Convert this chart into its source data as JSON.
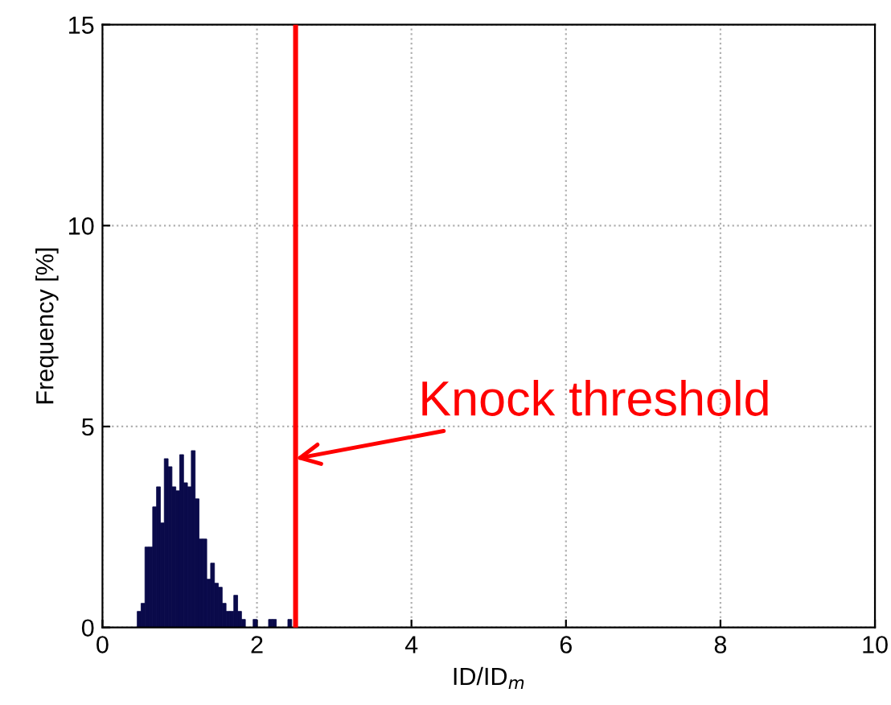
{
  "chart_data": {
    "type": "histogram",
    "xlabel": "ID/ID$_{m}$",
    "ylabel": "Frequency [%]",
    "bins": [
      0.45,
      0.5,
      0.55,
      0.6,
      0.65,
      0.7,
      0.75,
      0.8,
      0.85,
      0.9,
      0.95,
      1.0,
      1.05,
      1.1,
      1.15,
      1.2,
      1.25,
      1.3,
      1.35,
      1.4,
      1.45,
      1.5,
      1.55,
      1.6,
      1.65,
      1.7,
      1.75,
      1.8,
      1.85,
      1.9,
      1.95,
      2.0,
      2.05,
      2.1,
      2.15,
      2.2,
      2.25,
      2.3,
      2.35,
      2.4,
      2.45
    ],
    "values": [
      0.4,
      0.6,
      2.0,
      2.0,
      3.0,
      3.5,
      2.6,
      4.2,
      4.0,
      3.5,
      3.4,
      4.3,
      3.6,
      3.5,
      4.4,
      3.2,
      2.2,
      2.2,
      1.2,
      1.6,
      1.1,
      1.0,
      0.6,
      0.4,
      0.4,
      0.8,
      0.4,
      0.2,
      0,
      0,
      0.2,
      0,
      0,
      0,
      0.2,
      0.2,
      0,
      0,
      0,
      0.2
    ],
    "color": "#0a0a4a",
    "xlim": [
      0,
      10
    ],
    "xticks": [
      0,
      2,
      4,
      6,
      8,
      10
    ],
    "ylim": [
      0,
      15
    ],
    "yticks": [
      0,
      5,
      10,
      15
    ],
    "grid": true,
    "ref_lines": [
      {
        "axis": "x",
        "value": 2.5,
        "color": "#ff0000"
      }
    ],
    "annotations": [
      {
        "text": "Knock threshold",
        "x": 2.5,
        "y": 4.2
      }
    ]
  }
}
